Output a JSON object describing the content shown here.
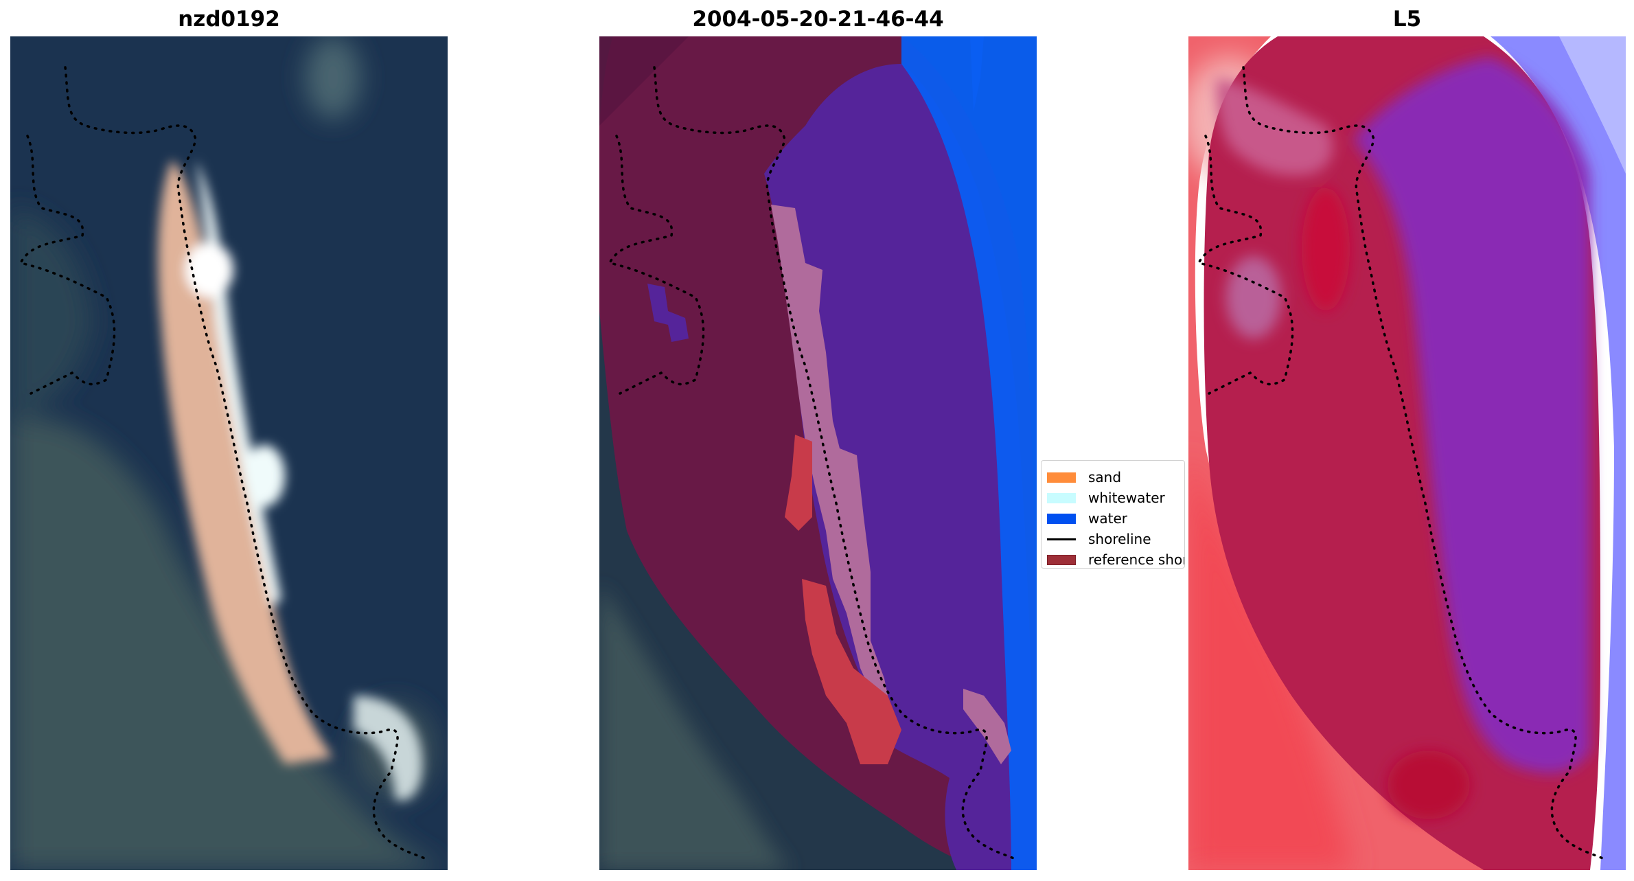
{
  "panels": [
    {
      "title": "nzd0192"
    },
    {
      "title": "2004-05-20-21-46-44"
    },
    {
      "title": "L5"
    }
  ],
  "legend": {
    "items": [
      {
        "label": "sand",
        "color": "#ff8c3a"
      },
      {
        "label": "whitewater",
        "color": "#c8fcff"
      },
      {
        "label": "water",
        "color": "#0050f0"
      },
      {
        "label": "shoreline",
        "color": "#000000"
      },
      {
        "label": "reference shoreline",
        "color": "#9e2f38"
      }
    ]
  },
  "colors": {
    "sea": "#1b3350",
    "land": "#3a4f57",
    "beach": "#e8b89c",
    "surf": "#e8f3f6",
    "class_land": "#7a1f4d",
    "class_water": "#5a2a99",
    "class_deep_water": "#0a62f5",
    "class_whitewater": "#b06b9e",
    "class_sand": "#c83b4a",
    "index_positive": "#c8123e",
    "index_negative": "#7a2ed0",
    "index_far": "#8a8cff"
  }
}
